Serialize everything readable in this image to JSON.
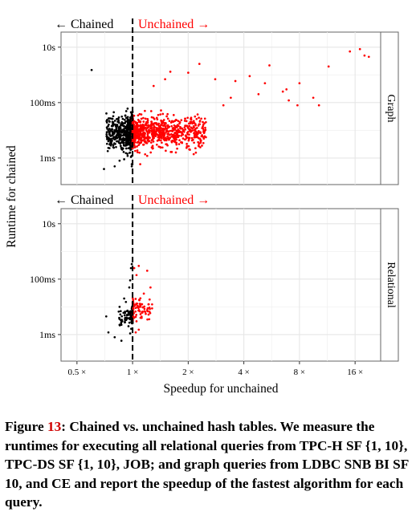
{
  "chart_data": {
    "type": "scatter",
    "xlabel": "Speedup for unchained",
    "ylabel": "Runtime for chained",
    "x_scale": "log2",
    "y_scale": "log10",
    "xlim": [
      0.41,
      22
    ],
    "x_ticks": [
      0.5,
      1,
      2,
      4,
      8,
      16
    ],
    "x_tick_labels": [
      "0.5 ×",
      "1 ×",
      "2 ×",
      "4 ×",
      "8 ×",
      "16 ×"
    ],
    "y_ticks": [
      0.001,
      0.1,
      10
    ],
    "y_tick_labels": [
      "1ms",
      "100ms",
      "10s"
    ],
    "reference_line_x": 1,
    "colors": {
      "chained": "#000000",
      "unchained": "#ff0000",
      "panel_border": "#666666",
      "grid": "#e6e6e6"
    },
    "legend": "none",
    "panels": [
      {
        "strip_label": "Graph",
        "ylim_seconds": [
          0.00011,
          35
        ],
        "annotation_left": "← Chained",
        "annotation_right": "Unchained →",
        "series": [
          {
            "name": "Chained",
            "color": "#000000",
            "points": [
              [
                0.98,
                0.045
              ],
              [
                0.97,
                0.012
              ],
              [
                0.95,
                0.0035
              ],
              [
                0.99,
                0.0006
              ],
              [
                0.9,
                0.0009
              ],
              [
                0.85,
                0.0008
              ],
              [
                0.92,
                0.0015
              ],
              [
                0.88,
                0.002
              ],
              [
                0.96,
                0.008
              ],
              [
                0.99,
                0.03
              ],
              [
                0.97,
                0.0022
              ],
              [
                0.94,
                0.0012
              ],
              [
                0.99,
                0.0005
              ],
              [
                0.6,
                1.5
              ],
              [
                0.7,
                0.0004
              ],
              [
                0.8,
                0.0005
              ],
              [
                0.93,
                0.005
              ],
              [
                0.98,
                0.0011
              ]
            ],
            "cluster": {
              "x_range": [
                0.72,
                1.0
              ],
              "y_range_seconds": [
                0.0004,
                0.18
              ],
              "count": 520
            }
          },
          {
            "name": "Unchained",
            "color": "#ff0000",
            "points": [
              [
                17,
                8.5
              ],
              [
                18,
                5
              ],
              [
                19,
                4.5
              ],
              [
                15,
                7
              ],
              [
                11.5,
                2
              ],
              [
                10.2,
                0.08
              ],
              [
                9.5,
                0.15
              ],
              [
                8,
                0.5
              ],
              [
                7.8,
                0.08
              ],
              [
                7,
                0.12
              ],
              [
                6.5,
                0.25
              ],
              [
                6.8,
                0.3
              ],
              [
                5.5,
                2.2
              ],
              [
                5.2,
                0.5
              ],
              [
                4.8,
                0.2
              ],
              [
                4.3,
                0.9
              ],
              [
                3.6,
                0.6
              ],
              [
                3.4,
                0.15
              ],
              [
                3.1,
                0.08
              ],
              [
                2.8,
                0.7
              ],
              [
                2.3,
                2.5
              ],
              [
                2,
                1.2
              ],
              [
                1.6,
                1.3
              ],
              [
                1.5,
                0.7
              ],
              [
                1.3,
                0.4
              ],
              [
                1.2,
                0.0012
              ],
              [
                1.1,
                0.0006
              ]
            ],
            "cluster": {
              "x_range": [
                1.0,
                2.5
              ],
              "y_range_seconds": [
                0.0006,
                0.12
              ],
              "count": 780
            }
          }
        ]
      },
      {
        "strip_label": "Relational",
        "ylim_seconds": [
          0.00011,
          35
        ],
        "annotation_left": "← Chained",
        "annotation_right": "Unchained →",
        "series": [
          {
            "name": "Chained",
            "color": "#000000",
            "points": [
              [
                0.99,
                0.35
              ],
              [
                0.98,
                0.25
              ],
              [
                0.97,
                0.09
              ],
              [
                0.96,
                0.05
              ],
              [
                0.9,
                0.02
              ],
              [
                0.92,
                0.015
              ],
              [
                0.85,
                0.01
              ],
              [
                0.98,
                0.007
              ],
              [
                0.93,
                0.004
              ],
              [
                0.88,
                0.003
              ],
              [
                0.95,
                0.002
              ],
              [
                0.72,
                0.0045
              ],
              [
                0.74,
                0.0012
              ],
              [
                0.8,
                0.0008
              ],
              [
                0.87,
                0.0006
              ],
              [
                0.97,
                0.0011
              ]
            ],
            "cluster": {
              "x_range": [
                0.83,
                1.0
              ],
              "y_range_seconds": [
                0.001,
                0.02
              ],
              "count": 90
            }
          },
          {
            "name": "Unchained",
            "color": "#ff0000",
            "points": [
              [
                1.02,
                0.25
              ],
              [
                1.05,
                0.14
              ],
              [
                1.08,
                0.3
              ],
              [
                1.2,
                0.2
              ],
              [
                1.25,
                0.05
              ],
              [
                1.15,
                0.03
              ],
              [
                1.1,
                0.01
              ],
              [
                1.05,
                0.003
              ],
              [
                1.04,
                0.0012
              ],
              [
                1.08,
                0.0015
              ],
              [
                1.12,
                0.004
              ]
            ],
            "cluster": {
              "x_range": [
                1.0,
                1.28
              ],
              "y_range_seconds": [
                0.0015,
                0.06
              ],
              "count": 70
            }
          }
        ]
      }
    ]
  },
  "caption": {
    "prefix": "Figure ",
    "number": "13",
    "text": ": Chained vs. unchained hash tables. We measure the runtimes for executing all relational queries from TPC-H SF {1, 10}, TPC-DS SF {1, 10}, JOB; and graph queries from LDBC SNB BI SF 10, and CE and report the speedup of the fastest algorithm for each query."
  }
}
